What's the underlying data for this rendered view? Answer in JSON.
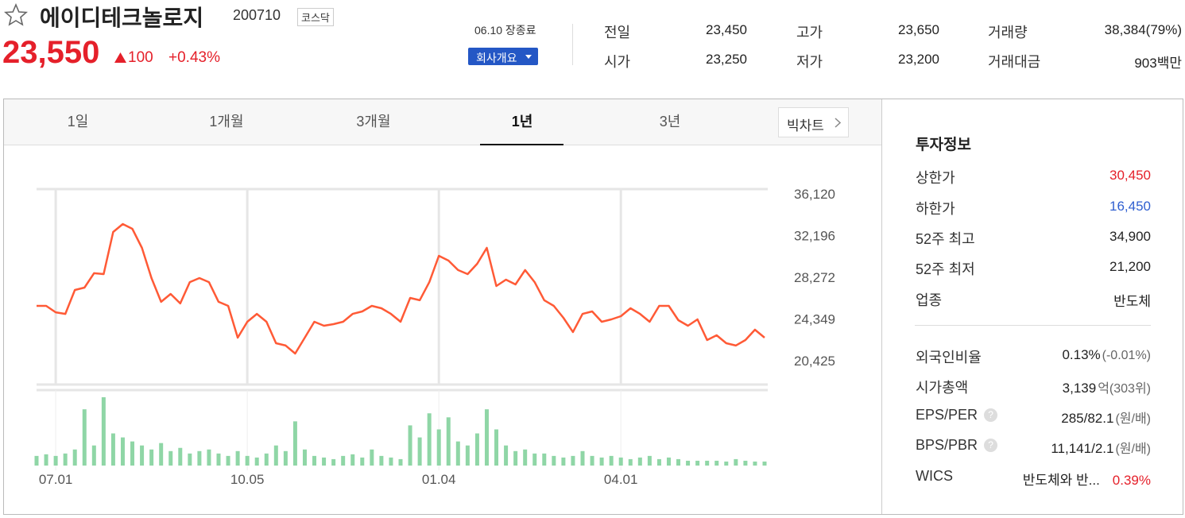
{
  "header": {
    "name": "에이디테크놀로지",
    "code": "200710",
    "market": "코스닥",
    "price": "23,550",
    "change": "100",
    "change_rate": "+0.43%",
    "status": "06.10 장종료",
    "company_button": "회사개요"
  },
  "stats": [
    {
      "label": "전일",
      "value": "23,450"
    },
    {
      "label": "고가",
      "value": "23,650"
    },
    {
      "label": "거래량",
      "value": "38,384(79%)"
    },
    {
      "label": "시가",
      "value": "23,250"
    },
    {
      "label": "저가",
      "value": "23,200"
    },
    {
      "label": "거래대금",
      "value": "903백만"
    }
  ],
  "tabs": [
    "1일",
    "1개월",
    "3개월",
    "1년",
    "3년"
  ],
  "big_chart": "빅차트",
  "chart_data": {
    "type": "line",
    "color": "#ff5a36",
    "categories": [
      null,
      null,
      "07.01",
      null,
      null,
      null,
      null,
      null,
      null,
      null,
      null,
      null,
      null,
      null,
      null,
      null,
      null,
      null,
      null,
      null,
      null,
      null,
      "10.05",
      null,
      null,
      null,
      null,
      null,
      null,
      null,
      null,
      null,
      null,
      null,
      null,
      null,
      null,
      null,
      null,
      null,
      null,
      null,
      "01.04",
      null,
      null,
      null,
      null,
      null,
      null,
      null,
      null,
      null,
      null,
      null,
      null,
      null,
      null,
      null,
      null,
      null,
      null,
      "04.01",
      null,
      null,
      null,
      null,
      null,
      null,
      null,
      null,
      null,
      null,
      null,
      null,
      null,
      null,
      null
    ],
    "values": [
      25580,
      25580,
      24980,
      24830,
      27080,
      27300,
      28650,
      28570,
      32530,
      33280,
      32830,
      31040,
      28200,
      25960,
      26700,
      25810,
      27820,
      28200,
      27820,
      25960,
      25580,
      22590,
      24090,
      24830,
      24090,
      22070,
      21850,
      21100,
      22590,
      24090,
      23710,
      23860,
      24090,
      24830,
      25060,
      25580,
      25360,
      24830,
      24090,
      26330,
      26110,
      27820,
      30290,
      29840,
      28950,
      28570,
      29540,
      31040,
      27450,
      28050,
      27600,
      28950,
      27820,
      26110,
      25580,
      24460,
      23120,
      24830,
      25060,
      24090,
      24310,
      24610,
      25360,
      24830,
      24090,
      25580,
      25580,
      24240,
      23710,
      24310,
      22370,
      22820,
      22070,
      21850,
      22370,
      23340,
      22590
    ],
    "ylim": [
      18183,
      36568
    ],
    "yticks": [
      {
        "value": 36120,
        "label": "36,120"
      },
      {
        "value": 32196,
        "label": "32,196"
      },
      {
        "value": 28272,
        "label": "28,272"
      },
      {
        "value": 24349,
        "label": "24,349"
      },
      {
        "value": 20425,
        "label": "20,425"
      }
    ],
    "volume": {
      "color": "#8fd6a6",
      "values": [
        92400,
        107800,
        92400,
        115500,
        154000,
        539000,
        192500,
        654500,
        308000,
        269500,
        231000,
        192500,
        154000,
        215600,
        138600,
        169400,
        115500,
        138600,
        154000,
        115500,
        92400,
        138600,
        92400,
        77000,
        115500,
        192500,
        138600,
        423500,
        154000,
        92400,
        77000,
        61600,
        92400,
        107800,
        77000,
        154000,
        92400,
        77000,
        61600,
        385000,
        269500,
        500500,
        346500,
        462000,
        231000,
        192500,
        308000,
        539000,
        346500,
        192500,
        138600,
        154000,
        115500,
        115500,
        92400,
        77000,
        92400,
        138600,
        92400,
        77000,
        92400,
        77000,
        61600,
        77000,
        92400,
        61600,
        77000,
        61600,
        46200,
        46200,
        46200,
        46200,
        38500,
        61600,
        46200,
        38500,
        38500
      ]
    }
  },
  "invest_info": {
    "title": "투자정보",
    "help_icon": "?",
    "rows": [
      {
        "label": "상한가",
        "value": "30,450"
      },
      {
        "label": "하한가",
        "value": "16,450"
      },
      {
        "label": "52주 최고",
        "value": "34,900"
      },
      {
        "label": "52주 최저",
        "value": "21,200"
      },
      {
        "label": "업종",
        "value": "반도체"
      },
      {
        "label": "외국인비율",
        "value": "0.13%",
        "note": "(-0.01%)"
      },
      {
        "label": "시가총액",
        "value": "3,139",
        "note": "억(303위)"
      },
      {
        "label": "EPS/PER",
        "value": "285/82.1",
        "note": "(원/배)"
      },
      {
        "label": "BPS/PBR",
        "value": "11,141/2.1",
        "note": "(원/배)"
      },
      {
        "label": "WICS",
        "value": "반도체와 반...",
        "note": "0.39%"
      }
    ]
  }
}
